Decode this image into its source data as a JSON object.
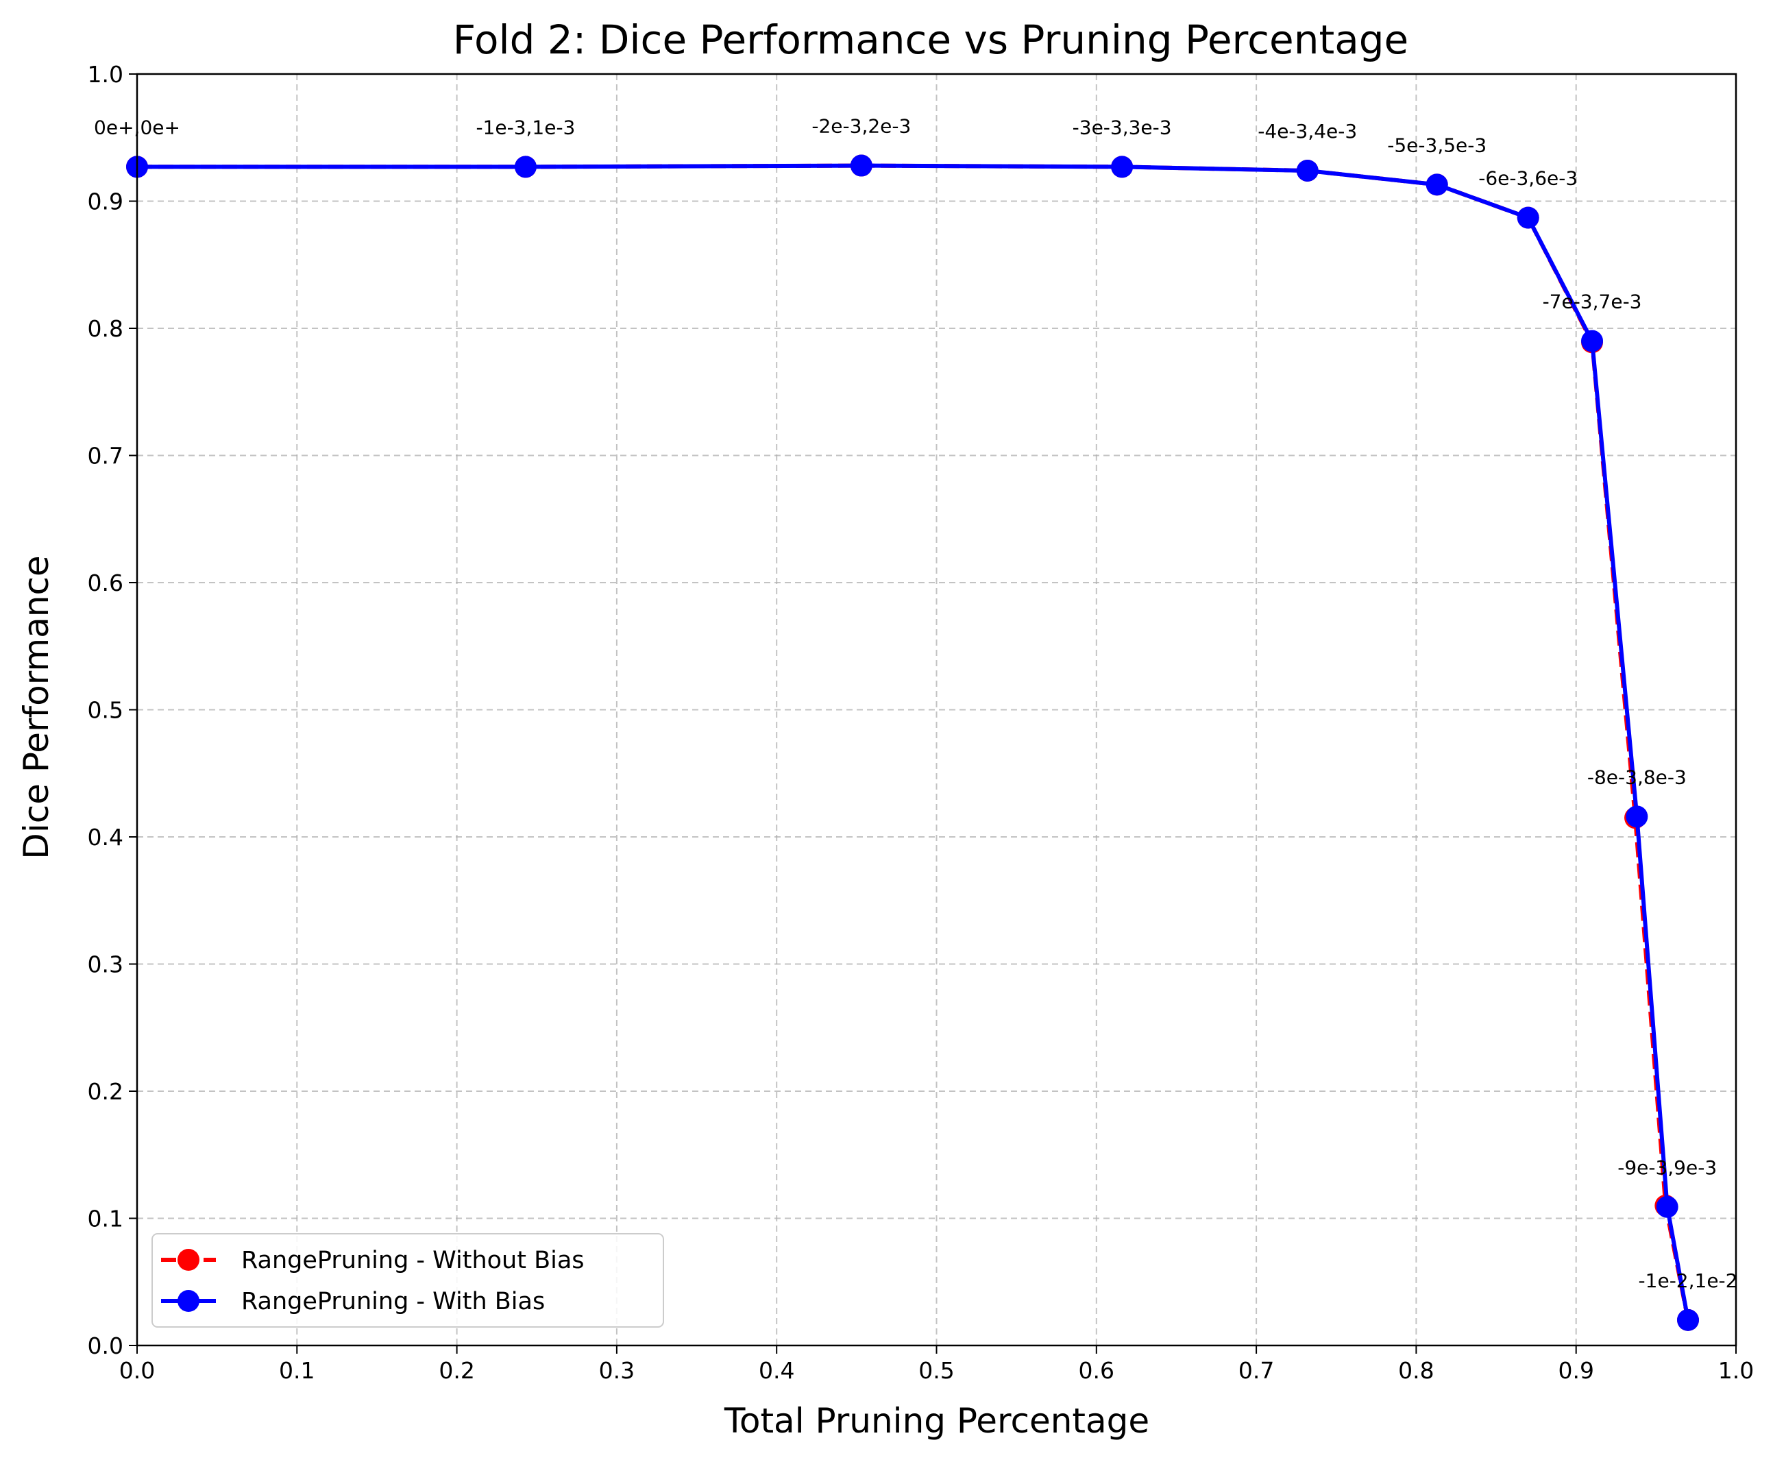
{
  "chart_data": {
    "type": "line",
    "title": "Fold 2: Dice Performance vs Pruning Percentage",
    "xlabel": "Total Pruning Percentage",
    "ylabel": "Dice Performance",
    "xlim": [
      0.0,
      1.0
    ],
    "ylim": [
      0.0,
      1.0
    ],
    "xticks": [
      "0.0",
      "0.1",
      "0.2",
      "0.3",
      "0.4",
      "0.5",
      "0.6",
      "0.7",
      "0.8",
      "0.9",
      "1.0"
    ],
    "yticks": [
      "0.0",
      "0.1",
      "0.2",
      "0.3",
      "0.4",
      "0.5",
      "0.6",
      "0.7",
      "0.8",
      "0.9",
      "1.0"
    ],
    "grid": true,
    "legend_position": "lower-left",
    "series": [
      {
        "name": "RangePruning - Without Bias",
        "color": "#ff0000",
        "line_style": "dashed",
        "x": [
          0.0,
          0.243,
          0.453,
          0.616,
          0.732,
          0.813,
          0.87,
          0.91,
          0.937,
          0.956,
          0.97
        ],
        "y": [
          0.927,
          0.927,
          0.928,
          0.927,
          0.924,
          0.913,
          0.887,
          0.789,
          0.415,
          0.11,
          0.02
        ]
      },
      {
        "name": "RangePruning - With Bias",
        "color": "#0000ff",
        "line_style": "solid",
        "x": [
          0.0,
          0.243,
          0.453,
          0.616,
          0.732,
          0.813,
          0.87,
          0.91,
          0.938,
          0.957,
          0.97
        ],
        "y": [
          0.927,
          0.927,
          0.928,
          0.927,
          0.924,
          0.913,
          0.887,
          0.79,
          0.416,
          0.109,
          0.02
        ]
      }
    ],
    "annotations": [
      {
        "text": "0e+,0e+",
        "x": 0.0,
        "y": 0.927
      },
      {
        "text": "-1e-3,1e-3",
        "x": 0.243,
        "y": 0.927
      },
      {
        "text": "-2e-3,2e-3",
        "x": 0.453,
        "y": 0.928
      },
      {
        "text": "-3e-3,3e-3",
        "x": 0.616,
        "y": 0.927
      },
      {
        "text": "-4e-3,4e-3",
        "x": 0.732,
        "y": 0.924
      },
      {
        "text": "-5e-3,5e-3",
        "x": 0.813,
        "y": 0.913
      },
      {
        "text": "-6e-3,6e-3",
        "x": 0.87,
        "y": 0.887
      },
      {
        "text": "-7e-3,7e-3",
        "x": 0.91,
        "y": 0.79
      },
      {
        "text": "-8e-3,8e-3",
        "x": 0.938,
        "y": 0.416
      },
      {
        "text": "-9e-3,9e-3",
        "x": 0.957,
        "y": 0.109
      },
      {
        "text": "-1e-2,1e-2",
        "x": 0.97,
        "y": 0.02
      }
    ]
  }
}
